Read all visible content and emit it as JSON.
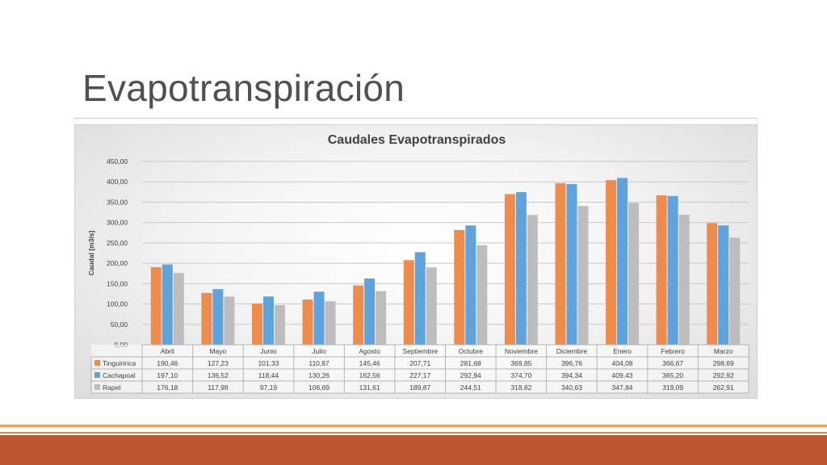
{
  "slide": {
    "title": "Evapotranspiración"
  },
  "chart_data": {
    "type": "bar",
    "title": "Caudales Evapotranspirados",
    "xlabel": "",
    "ylabel": "Caudal [m3/s]",
    "ylim": [
      0,
      450
    ],
    "yticks": [
      "0,00",
      "50,00",
      "100,00",
      "150,00",
      "200,00",
      "250,00",
      "300,00",
      "350,00",
      "400,00",
      "450,00"
    ],
    "grid": true,
    "legend": "data-table-below",
    "categories": [
      "Abril",
      "Mayo",
      "Junio",
      "Julio",
      "Agosto",
      "Septiembre",
      "Octubre",
      "Noviembre",
      "Diciembre",
      "Enero",
      "Febrero",
      "Marzo"
    ],
    "series": [
      {
        "name": "Tinguiririca",
        "color": "#ed8c4c",
        "values": [
          190.46,
          127.23,
          101.33,
          110.87,
          145.46,
          207.71,
          281.68,
          369.85,
          396.76,
          404.08,
          366.67,
          298.69
        ],
        "labels": [
          "190,46",
          "127,23",
          "101,33",
          "110,87",
          "145,46",
          "207,71",
          "281,68",
          "369,85",
          "396,76",
          "404,08",
          "366,67",
          "298,69"
        ]
      },
      {
        "name": "Cachapoal",
        "color": "#5fa2dc",
        "values": [
          197.1,
          136.52,
          118.44,
          130.26,
          162.56,
          227.17,
          292.94,
          374.7,
          394.34,
          409.43,
          365.2,
          292.92
        ],
        "labels": [
          "197,10",
          "136,52",
          "118,44",
          "130,26",
          "162,56",
          "227,17",
          "292,94",
          "374,70",
          "394,34",
          "409,43",
          "365,20",
          "292,92"
        ]
      },
      {
        "name": "Rapel",
        "color": "#bdbdbd",
        "values": [
          176.18,
          117.98,
          97.19,
          106.69,
          131.61,
          189.87,
          244.51,
          318.82,
          340.63,
          347.84,
          319.09,
          262.91
        ],
        "labels": [
          "176,18",
          "117,98",
          "97,19",
          "106,69",
          "131,61",
          "189,87",
          "244,51",
          "318,82",
          "340,63",
          "347,84",
          "319,09",
          "262,91"
        ]
      }
    ]
  }
}
